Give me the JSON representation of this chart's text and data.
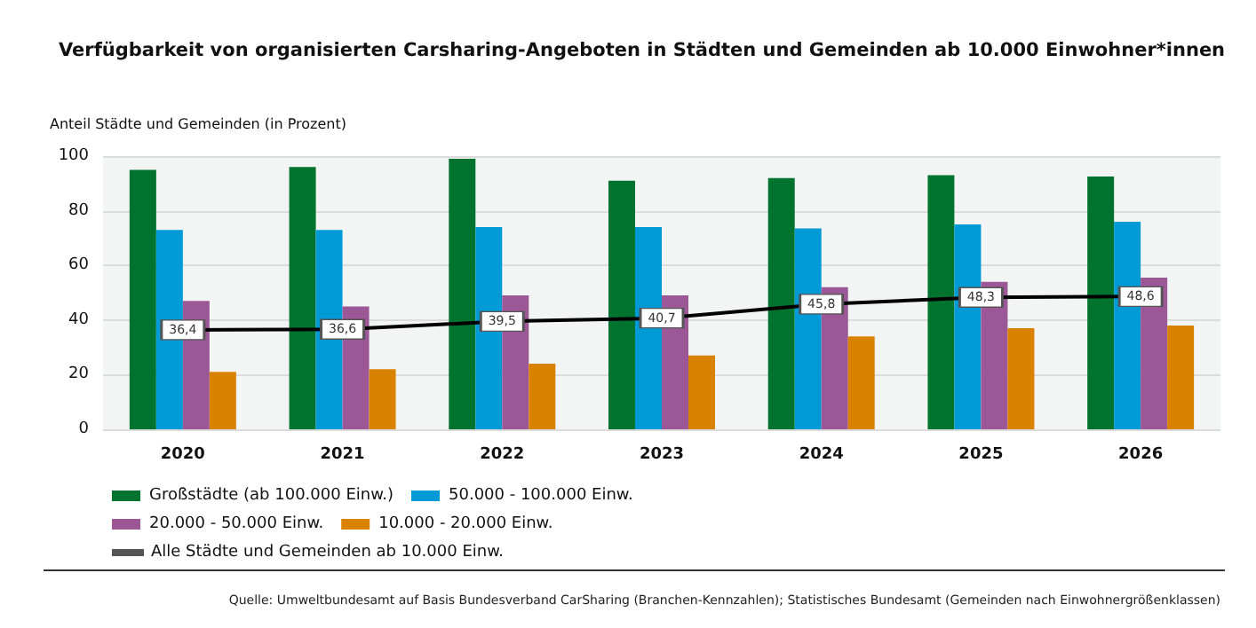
{
  "chart_data": {
    "type": "bar",
    "title": "Verfügbarkeit von organisierten Carsharing-Angeboten in Städten und Gemeinden ab 10.000 Einwohner*innen",
    "ylabel": "Anteil Städte und Gemeinden (in Prozent)",
    "annotations": [
      "Quelle: Umweltbundesamt auf Basis Bundesverband CarSharing (Branchen-Kennzahlen); Statistisches Bundesamt (Gemeinden nach Einwohnergrößenklassen)"
    ],
    "categories": [
      "2020",
      "2021",
      "2022",
      "2023",
      "2024",
      "2025",
      "2026"
    ],
    "series": [
      {
        "name": "Großstädte (ab 100.000 Einw.)",
        "color": "#00742e",
        "values": [
          95,
          96,
          99,
          91,
          92,
          93,
          92.5
        ]
      },
      {
        "name": "50.000 - 100.000 Einw.",
        "color": "#009bd6",
        "values": [
          73,
          73,
          74,
          74,
          73.5,
          75,
          76
        ]
      },
      {
        "name": "20.000 - 50.000 Einw.",
        "color": "#9c5797",
        "values": [
          47,
          45,
          49,
          49,
          52,
          54,
          55.5
        ]
      },
      {
        "name": "10.000 - 20.000 Einw.",
        "color": "#d98200",
        "values": [
          21,
          22,
          24,
          27,
          34,
          37,
          38
        ]
      },
      {
        "name": "Alle Städte und Gemeinden ab 10.000 Einw.",
        "type": "line",
        "color": "#000000",
        "values": [
          36.4,
          36.6,
          39.5,
          40.7,
          45.8,
          48.3,
          48.6
        ],
        "value_labels": [
          "36,4",
          "36,6",
          "39,5",
          "40,7",
          "45,8",
          "48,3",
          "48,6"
        ],
        "marker": "square",
        "line_style": "solid"
      }
    ],
    "ylim": [
      0,
      100
    ],
    "yticks": [
      0,
      20,
      40,
      60,
      80,
      100
    ],
    "grid": "y",
    "legend": "bottom"
  }
}
